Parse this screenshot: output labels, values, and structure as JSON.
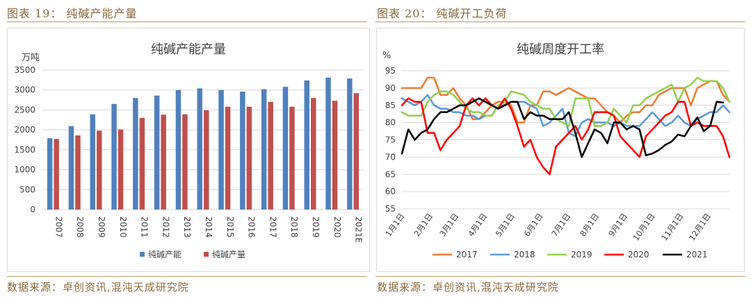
{
  "left": {
    "figure_label": "图表 19： 纯碱产能产量",
    "source": "数据来源：卓创资讯,混沌天成研究院"
  },
  "right": {
    "figure_label": "图表 20： 纯碱开工负荷",
    "source": "数据来源：卓创资讯,混沌天成研究院"
  },
  "chart_data": [
    {
      "type": "bar",
      "title": "纯碱产能产量",
      "ylabel": "万吨",
      "ylim": [
        0,
        3500
      ],
      "yticks": [
        0,
        500,
        1000,
        1500,
        2000,
        2500,
        3000,
        3500
      ],
      "grid": true,
      "legend": "bottom",
      "categories": [
        "2007",
        "2008",
        "2009",
        "2010",
        "2011",
        "2012",
        "2013",
        "2014",
        "2015",
        "2016",
        "2017",
        "2018",
        "2019",
        "2020",
        "2021E"
      ],
      "series": [
        {
          "name": "纯碱产能",
          "color": "#4f81bd",
          "values": [
            1790,
            2090,
            2390,
            2650,
            2800,
            2860,
            3000,
            3040,
            3000,
            2960,
            3020,
            3080,
            3240,
            3310,
            3290
          ]
        },
        {
          "name": "纯碱产量",
          "color": "#c0504d",
          "values": [
            1770,
            1860,
            1980,
            2010,
            2300,
            2380,
            2390,
            2490,
            2580,
            2580,
            2700,
            2580,
            2800,
            2730,
            2920
          ]
        }
      ]
    },
    {
      "type": "line",
      "title": "纯碱周度开工率",
      "ylabel": "%",
      "ylim": [
        55,
        95
      ],
      "yticks": [
        55,
        60,
        65,
        70,
        75,
        80,
        85,
        90,
        95
      ],
      "grid": true,
      "legend": "bottom",
      "x_range_weeks": [
        0,
        51
      ],
      "x_tick_weeks": [
        0,
        4.43,
        8.43,
        12.86,
        17.14,
        21.57,
        25.86,
        30.29,
        34.71,
        39,
        43.43,
        47.71
      ],
      "x_tick_labels": [
        "1月1日",
        "2月1日",
        "3月1日",
        "4月1日",
        "5月1日",
        "6月1日",
        "7月1日",
        "8月1日",
        "9月1日",
        "10月1日",
        "11月1日",
        "12月1日"
      ],
      "series": [
        {
          "name": "2017",
          "color": "#ed7d31",
          "values": [
            [
              0,
              90
            ],
            [
              1,
              90
            ],
            [
              2,
              90
            ],
            [
              3,
              90
            ],
            [
              4,
              93
            ],
            [
              5,
              93
            ],
            [
              6,
              88
            ],
            [
              7,
              88
            ],
            [
              8,
              90
            ],
            [
              9,
              87
            ],
            [
              10,
              85
            ],
            [
              11,
              81
            ],
            [
              12,
              81
            ],
            [
              13,
              83
            ],
            [
              14,
              85
            ],
            [
              15,
              86
            ],
            [
              16,
              86
            ],
            [
              17,
              85
            ],
            [
              18,
              80
            ],
            [
              19,
              80
            ],
            [
              20,
              85
            ],
            [
              21,
              85
            ],
            [
              22,
              89
            ],
            [
              23,
              89
            ],
            [
              24,
              88
            ],
            [
              25,
              89
            ],
            [
              26,
              90
            ],
            [
              27,
              89
            ],
            [
              28,
              88
            ],
            [
              29,
              87
            ],
            [
              30,
              87
            ],
            [
              31,
              85
            ],
            [
              32,
              83
            ],
            [
              33,
              82
            ],
            [
              34,
              80
            ],
            [
              35,
              82
            ],
            [
              36,
              83
            ],
            [
              37,
              83
            ],
            [
              38,
              85
            ],
            [
              39,
              85
            ],
            [
              40,
              88
            ],
            [
              41,
              89
            ],
            [
              42,
              90
            ],
            [
              43,
              90
            ],
            [
              44,
              90
            ],
            [
              45,
              85
            ],
            [
              46,
              90
            ],
            [
              47,
              91
            ],
            [
              48,
              92
            ],
            [
              49,
              92
            ],
            [
              50,
              88
            ],
            [
              51,
              86
            ]
          ]
        },
        {
          "name": "2018",
          "color": "#5b9bd5",
          "values": [
            [
              0,
              87
            ],
            [
              1,
              86
            ],
            [
              2,
              85
            ],
            [
              3,
              86
            ],
            [
              4,
              88
            ],
            [
              5,
              85
            ],
            [
              6,
              84
            ],
            [
              7,
              84
            ],
            [
              8,
              83
            ],
            [
              9,
              83
            ],
            [
              10,
              82
            ],
            [
              11,
              82
            ],
            [
              12,
              81
            ],
            [
              13,
              82
            ],
            [
              14,
              82
            ],
            [
              15,
              85
            ],
            [
              16,
              85
            ],
            [
              17,
              86
            ],
            [
              18,
              86
            ],
            [
              19,
              86
            ],
            [
              20,
              85
            ],
            [
              21,
              84
            ],
            [
              22,
              79
            ],
            [
              23,
              80
            ],
            [
              24,
              82
            ],
            [
              25,
              84
            ],
            [
              26,
              77
            ],
            [
              27,
              76
            ],
            [
              28,
              80
            ],
            [
              29,
              81
            ],
            [
              30,
              80
            ],
            [
              31,
              80
            ],
            [
              32,
              80
            ],
            [
              33,
              79
            ],
            [
              34,
              80
            ],
            [
              35,
              79
            ],
            [
              36,
              79
            ],
            [
              37,
              79
            ],
            [
              38,
              81
            ],
            [
              39,
              83
            ],
            [
              40,
              81
            ],
            [
              41,
              79
            ],
            [
              42,
              80
            ],
            [
              43,
              82
            ],
            [
              44,
              80
            ],
            [
              45,
              79
            ],
            [
              46,
              81
            ],
            [
              47,
              82
            ],
            [
              48,
              83
            ],
            [
              49,
              83
            ],
            [
              50,
              85
            ],
            [
              51,
              83
            ]
          ]
        },
        {
          "name": "2019",
          "color": "#92d050",
          "values": [
            [
              0,
              83
            ],
            [
              1,
              82
            ],
            [
              2,
              82
            ],
            [
              3,
              82
            ],
            [
              4,
              86
            ],
            [
              5,
              88
            ],
            [
              6,
              89
            ],
            [
              7,
              89
            ],
            [
              8,
              88
            ],
            [
              9,
              86
            ],
            [
              10,
              84
            ],
            [
              11,
              83
            ],
            [
              12,
              83
            ],
            [
              13,
              82
            ],
            [
              14,
              82
            ],
            [
              15,
              85
            ],
            [
              16,
              86
            ],
            [
              17,
              89
            ],
            [
              18,
              88.5
            ],
            [
              19,
              88
            ],
            [
              20,
              86
            ],
            [
              21,
              85
            ],
            [
              22,
              84
            ],
            [
              23,
              84
            ],
            [
              24,
              81
            ],
            [
              25,
              80
            ],
            [
              26,
              79
            ],
            [
              27,
              87
            ],
            [
              28,
              87
            ],
            [
              29,
              87
            ],
            [
              30,
              79
            ],
            [
              31,
              79
            ],
            [
              32,
              80
            ],
            [
              33,
              84
            ],
            [
              34,
              82
            ],
            [
              35,
              80
            ],
            [
              36,
              85
            ],
            [
              37,
              85
            ],
            [
              38,
              87
            ],
            [
              39,
              88
            ],
            [
              40,
              89
            ],
            [
              41,
              90
            ],
            [
              42,
              91
            ],
            [
              43,
              86
            ],
            [
              44,
              90
            ],
            [
              45,
              91
            ],
            [
              46,
              93
            ],
            [
              47,
              92
            ],
            [
              48,
              92
            ],
            [
              49,
              92
            ],
            [
              50,
              90
            ],
            [
              51,
              86
            ]
          ]
        },
        {
          "name": "2020",
          "color": "#ff0000",
          "values": [
            [
              0,
              85
            ],
            [
              1,
              87
            ],
            [
              2,
              86
            ],
            [
              3,
              86
            ],
            [
              4,
              77
            ],
            [
              5,
              77
            ],
            [
              6,
              72
            ],
            [
              7,
              75
            ],
            [
              8,
              77
            ],
            [
              9,
              79
            ],
            [
              10,
              85
            ],
            [
              11,
              87
            ],
            [
              12,
              85
            ],
            [
              13,
              87
            ],
            [
              14,
              85
            ],
            [
              15,
              84
            ],
            [
              16,
              87
            ],
            [
              17,
              84
            ],
            [
              18,
              79
            ],
            [
              19,
              73
            ],
            [
              20,
              75
            ],
            [
              21,
              70
            ],
            [
              22,
              67
            ],
            [
              23,
              65
            ],
            [
              24,
              73
            ],
            [
              25,
              75
            ],
            [
              26,
              77
            ],
            [
              27,
              79
            ],
            [
              28,
              75
            ],
            [
              29,
              78
            ],
            [
              30,
              83
            ],
            [
              31,
              83
            ],
            [
              32,
              83
            ],
            [
              33,
              82
            ],
            [
              34,
              76
            ],
            [
              35,
              74
            ],
            [
              36,
              72
            ],
            [
              37,
              70
            ],
            [
              38,
              76
            ],
            [
              39,
              78
            ],
            [
              40,
              80
            ],
            [
              41,
              82
            ],
            [
              42,
              83
            ],
            [
              43,
              86
            ],
            [
              44,
              86
            ],
            [
              45,
              79
            ],
            [
              46,
              80
            ],
            [
              47,
              79
            ],
            [
              48,
              79
            ],
            [
              49,
              79
            ],
            [
              50,
              76
            ],
            [
              51,
              70
            ]
          ]
        },
        {
          "name": "2021",
          "color": "#000000",
          "values": [
            [
              0,
              71
            ],
            [
              1,
              78
            ],
            [
              2,
              75
            ],
            [
              3,
              77
            ],
            [
              4,
              78
            ],
            [
              5,
              81
            ],
            [
              6,
              83
            ],
            [
              7,
              83
            ],
            [
              8,
              84
            ],
            [
              9,
              85
            ],
            [
              10,
              85
            ],
            [
              11,
              86
            ],
            [
              12,
              87
            ],
            [
              13,
              86
            ],
            [
              14,
              85
            ],
            [
              15,
              84
            ],
            [
              16,
              85
            ],
            [
              17,
              86
            ],
            [
              18,
              86
            ],
            [
              19,
              81
            ],
            [
              20,
              83
            ],
            [
              21,
              82
            ],
            [
              22,
              82
            ],
            [
              23,
              81
            ],
            [
              24,
              81
            ],
            [
              25,
              81
            ],
            [
              26,
              83
            ],
            [
              27,
              77
            ],
            [
              28,
              70
            ],
            [
              29,
              74
            ],
            [
              30,
              78
            ],
            [
              31,
              77
            ],
            [
              32,
              74
            ],
            [
              33,
              80
            ],
            [
              34,
              80
            ],
            [
              35,
              78
            ],
            [
              36,
              79
            ],
            [
              37,
              78
            ],
            [
              38,
              70.5
            ],
            [
              39,
              71
            ],
            [
              40,
              72
            ],
            [
              41,
              73.5
            ],
            [
              42,
              74.5
            ],
            [
              43,
              76.5
            ],
            [
              44,
              76
            ],
            [
              45,
              79
            ],
            [
              46,
              81.5
            ],
            [
              47,
              77.5
            ],
            [
              48,
              79
            ],
            [
              49,
              86
            ],
            [
              50,
              85.8
            ]
          ]
        }
      ]
    }
  ]
}
